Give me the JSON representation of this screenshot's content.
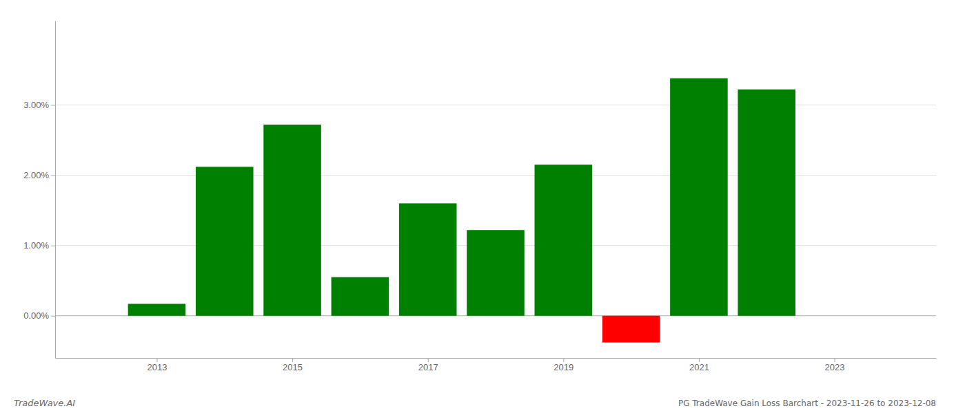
{
  "chart_data": {
    "type": "bar",
    "title": "PG TradeWave Gain Loss Barchart - 2023-11-26 to 2023-12-08",
    "annotations": [
      "TradeWave.AI"
    ],
    "x": [
      2013,
      2014,
      2015,
      2016,
      2017,
      2018,
      2019,
      2020,
      2021,
      2022
    ],
    "values": [
      0.0017,
      0.0212,
      0.0272,
      0.0055,
      0.016,
      0.0122,
      0.0215,
      -0.0038,
      0.0338,
      0.0322
    ],
    "colors": [
      "#008000",
      "#008000",
      "#008000",
      "#008000",
      "#008000",
      "#008000",
      "#008000",
      "#ff0000",
      "#008000",
      "#008000"
    ],
    "xlim": [
      2011.5,
      2024.5
    ],
    "xticks": [
      2013,
      2015,
      2017,
      2019,
      2021,
      2023
    ],
    "ylim": [
      -0.006,
      0.042
    ],
    "yticks": [
      {
        "value": 0.0,
        "label": "0.00%"
      },
      {
        "value": 0.01,
        "label": "1.00%"
      },
      {
        "value": 0.02,
        "label": "2.00%"
      },
      {
        "value": 0.03,
        "label": "3.00%"
      }
    ],
    "grid": true
  }
}
